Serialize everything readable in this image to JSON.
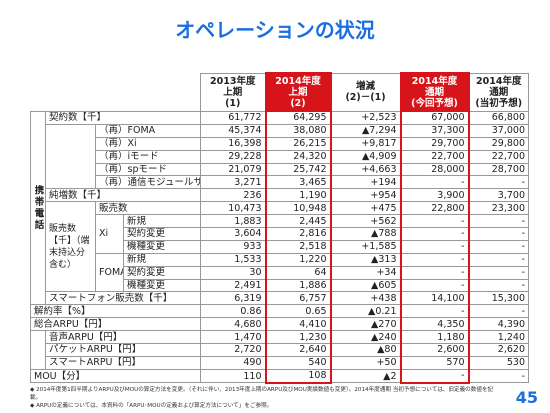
{
  "title": "オペレーションの状況",
  "table": {
    "header": [
      [
        "2013年度",
        "上期",
        "(1)"
      ],
      [
        "2014年度",
        "上期",
        "(2)"
      ],
      [
        "増減",
        "(2)－(1)"
      ],
      [
        "2014年度",
        "通期",
        "(今回予想)"
      ],
      [
        "2014年度",
        "通期",
        "(当初予想)"
      ]
    ],
    "group": "携帯電話",
    "sales_group": "販売数【千】（端末持込分含む）",
    "sub_groups": [
      "Xi",
      "FOMA"
    ],
    "rows": [
      {
        "label": "契約数【千】",
        "values": [
          "61,772",
          "64,295",
          "+2,523",
          "67,000",
          "66,800"
        ]
      },
      {
        "label": "（再）FOMA",
        "values": [
          "45,374",
          "38,080",
          "▲7,294",
          "37,300",
          "37,000"
        ]
      },
      {
        "label": "（再）Xi",
        "values": [
          "16,398",
          "26,215",
          "+9,817",
          "29,700",
          "29,800"
        ]
      },
      {
        "label": "（再）iモード",
        "values": [
          "29,228",
          "24,320",
          "▲4,909",
          "22,700",
          "22,700"
        ]
      },
      {
        "label": "（再）spモード",
        "values": [
          "21,079",
          "25,742",
          "+4,663",
          "28,000",
          "28,700"
        ]
      },
      {
        "label": "（再）通信モジュールサービス",
        "values": [
          "3,271",
          "3,465",
          "+194",
          "-",
          "-"
        ]
      },
      {
        "label": "純増数【千】",
        "values": [
          "236",
          "1,190",
          "+954",
          "3,900",
          "3,700"
        ]
      },
      {
        "label": "販売数",
        "values": [
          "10,473",
          "10,948",
          "+475",
          "22,800",
          "23,300"
        ]
      },
      {
        "label": "新規",
        "values": [
          "1,883",
          "2,445",
          "+562",
          "-",
          "-"
        ]
      },
      {
        "label": "契約変更",
        "values": [
          "3,604",
          "2,816",
          "▲788",
          "-",
          "-"
        ]
      },
      {
        "label": "機種変更",
        "values": [
          "933",
          "2,518",
          "+1,585",
          "-",
          "-"
        ]
      },
      {
        "label": "新規",
        "values": [
          "1,533",
          "1,220",
          "▲313",
          "-",
          "-"
        ]
      },
      {
        "label": "契約変更",
        "values": [
          "30",
          "64",
          "+34",
          "-",
          "-"
        ]
      },
      {
        "label": "機種変更",
        "values": [
          "2,491",
          "1,886",
          "▲605",
          "-",
          "-"
        ]
      },
      {
        "label": "スマートフォン販売数【千】",
        "values": [
          "6,319",
          "6,757",
          "+438",
          "14,100",
          "15,300"
        ]
      },
      {
        "label": "解約率【%】",
        "values": [
          "0.86",
          "0.65",
          "▲0.21",
          "-",
          "-"
        ]
      },
      {
        "label": "総合ARPU【円】",
        "values": [
          "4,680",
          "4,410",
          "▲270",
          "4,350",
          "4,390"
        ]
      },
      {
        "label": "音声ARPU【円】",
        "values": [
          "1,470",
          "1,230",
          "▲240",
          "1,180",
          "1,240"
        ]
      },
      {
        "label": "パケットARPU【円】",
        "values": [
          "2,720",
          "2,640",
          "▲80",
          "2,600",
          "2,620"
        ]
      },
      {
        "label": "スマートARPU【円】",
        "values": [
          "490",
          "540",
          "+50",
          "570",
          "530"
        ]
      },
      {
        "label": "MOU【分】",
        "values": [
          "110",
          "108",
          "▲2",
          "-",
          "-"
        ]
      }
    ]
  },
  "footnotes": [
    "◆ 2014年度第1四半期よりARPU及びMOUの算定方法を変更。（それに伴い、2013年度上期のARPU及びMOU実績数値も変更）。2014年度通期 当初予想については、旧定義の数値を記載。",
    "◆ ARPUの定義については、本資料の「ARPU･MOUの定義および算定方法について」をご参照。"
  ],
  "page_number": "45"
}
